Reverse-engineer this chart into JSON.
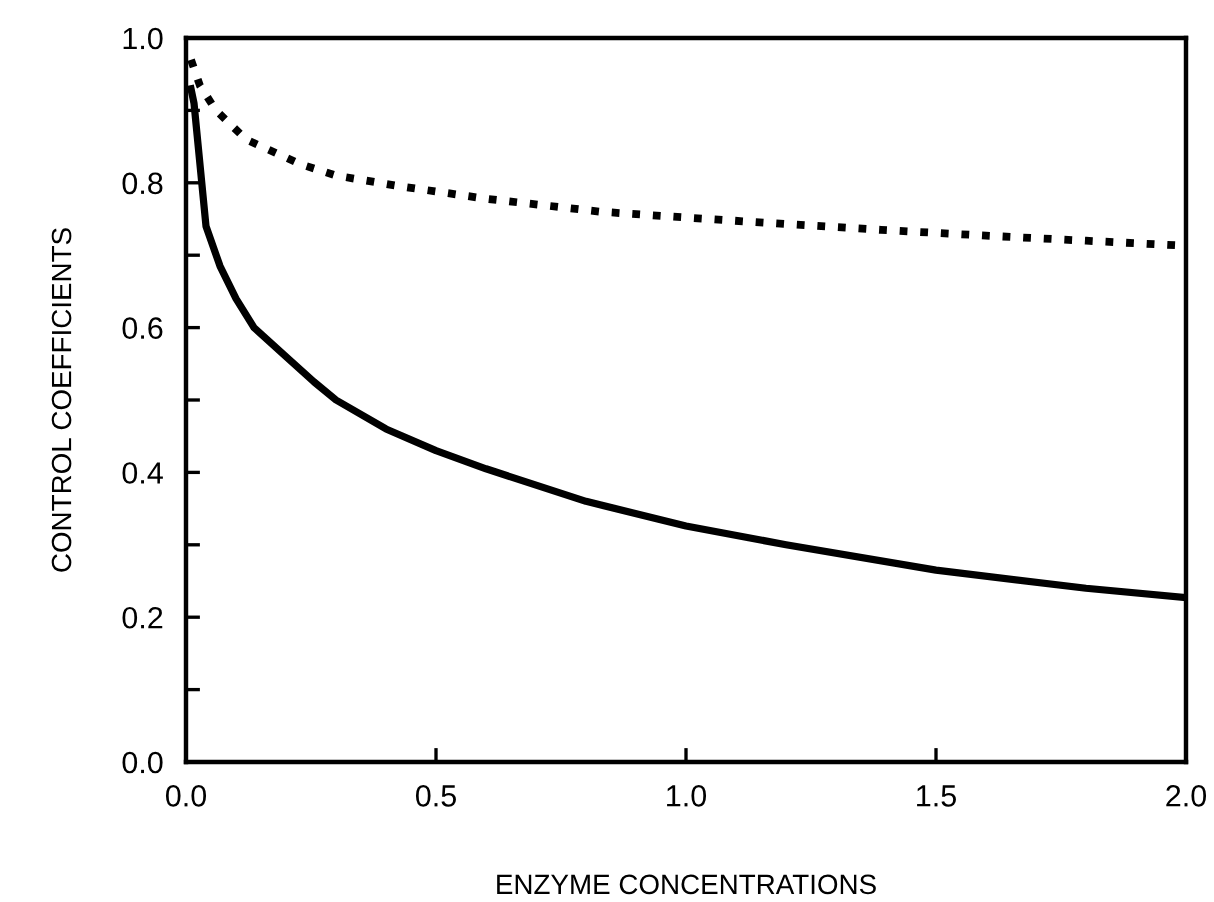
{
  "chart_data": {
    "type": "line",
    "xlabel": "ENZYME CONCENTRATIONS",
    "ylabel": "CONTROL COEFFICIENTS",
    "series": [
      {
        "color": "#000000",
        "line_style": "solid",
        "x": [
          0.01,
          0.016,
          0.04,
          0.068,
          0.1,
          0.136,
          0.2,
          0.256,
          0.3,
          0.4,
          0.5,
          0.6,
          0.8,
          1.0,
          1.2,
          1.5,
          1.8,
          2.0
        ],
        "values": [
          0.93,
          0.91,
          0.74,
          0.685,
          0.64,
          0.6,
          0.56,
          0.525,
          0.5,
          0.46,
          0.43,
          0.405,
          0.36,
          0.326,
          0.3,
          0.265,
          0.24,
          0.227
        ]
      },
      {
        "color": "#000000",
        "line_style": "dotted",
        "x": [
          0.01,
          0.028,
          0.06,
          0.12,
          0.228,
          0.3,
          0.43,
          0.6,
          0.83,
          1.0,
          1.2,
          1.39,
          1.6,
          1.8,
          2.0
        ],
        "values": [
          0.97,
          0.934,
          0.9,
          0.86,
          0.826,
          0.81,
          0.795,
          0.778,
          0.76,
          0.752,
          0.743,
          0.735,
          0.727,
          0.72,
          0.713
        ]
      }
    ],
    "xlim": [
      0,
      2.0
    ],
    "ylim": [
      0,
      1.0
    ],
    "xticks": [
      {
        "value": 0,
        "label": "0.0"
      },
      0.5,
      {
        "value": 1,
        "label": "1.0"
      },
      1.5,
      {
        "value": 2,
        "label": "2.0"
      }
    ],
    "yticks": [
      {
        "value": 0,
        "label": "0.0"
      },
      {
        "value": 0.1,
        "label": null
      },
      0.2,
      {
        "value": 0.3,
        "label": null
      },
      0.4,
      {
        "value": 0.5,
        "label": null
      },
      0.6,
      {
        "value": 0.7,
        "label": null
      },
      0.8,
      {
        "value": 0.9,
        "label": null
      },
      {
        "value": 1,
        "label": "1.0"
      }
    ],
    "grid": false,
    "legend": false,
    "marker": "none"
  }
}
